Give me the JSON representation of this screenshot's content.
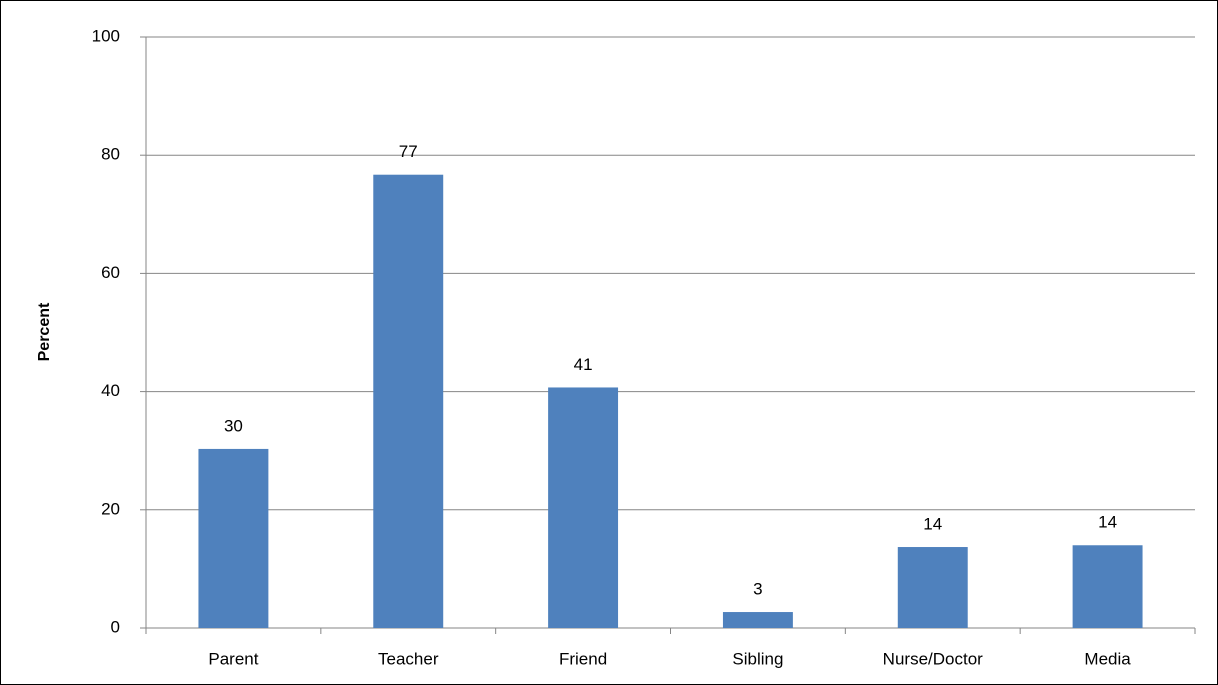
{
  "chart_data": {
    "type": "bar",
    "y_label": "Percent",
    "categories": [
      "Parent",
      "Teacher",
      "Friend",
      "Sibling",
      "Nurse/Doctor",
      "Media"
    ],
    "values": [
      30.3,
      76.7,
      40.7,
      2.7,
      13.7,
      14.0
    ],
    "value_labels": [
      "30",
      "77",
      "41",
      "3",
      "14",
      "14"
    ],
    "color": "#4f81bd",
    "ylim": [
      0,
      100
    ],
    "yticks": [
      0,
      20,
      40,
      60,
      80,
      100
    ],
    "grid": true
  }
}
